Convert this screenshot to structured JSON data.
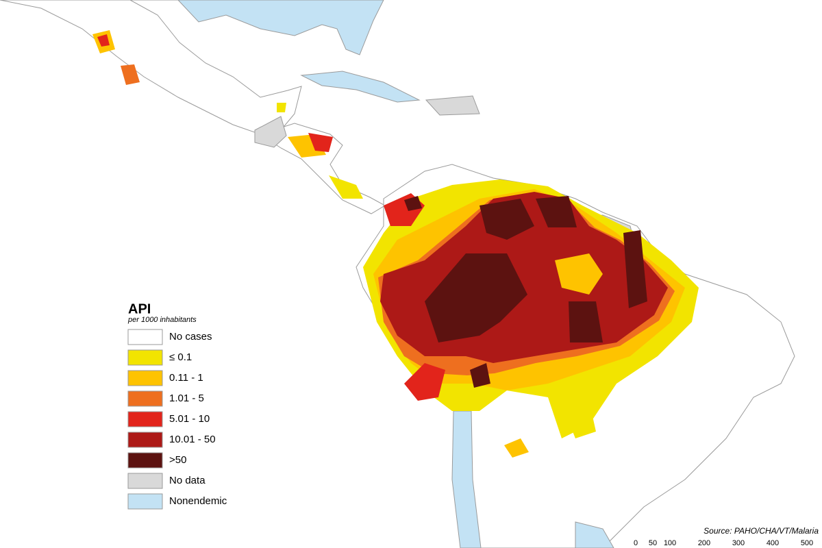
{
  "legend": {
    "title": "API",
    "subtitle": "per 1000 inhabitants",
    "items": [
      {
        "label": "No cases",
        "color": "#ffffff"
      },
      {
        "label": "≤ 0.1",
        "color": "#f2e400"
      },
      {
        "label": "0.11 - 1",
        "color": "#fec300"
      },
      {
        "label": "1.01 - 5",
        "color": "#ee6f1f"
      },
      {
        "label": "5.01 - 10",
        "color": "#e2241b"
      },
      {
        "label": "10.01 - 50",
        "color": "#ad1917"
      },
      {
        "label": ">50",
        "color": "#5c1210"
      },
      {
        "label": "No data",
        "color": "#d9d9d9"
      },
      {
        "label": "Nonendemic",
        "color": "#c3e2f4"
      }
    ]
  },
  "source": "Source: PAHO/CHA/VT/Malaria",
  "scale": {
    "ticks": [
      0,
      50,
      100,
      200,
      300,
      400,
      500
    ]
  }
}
